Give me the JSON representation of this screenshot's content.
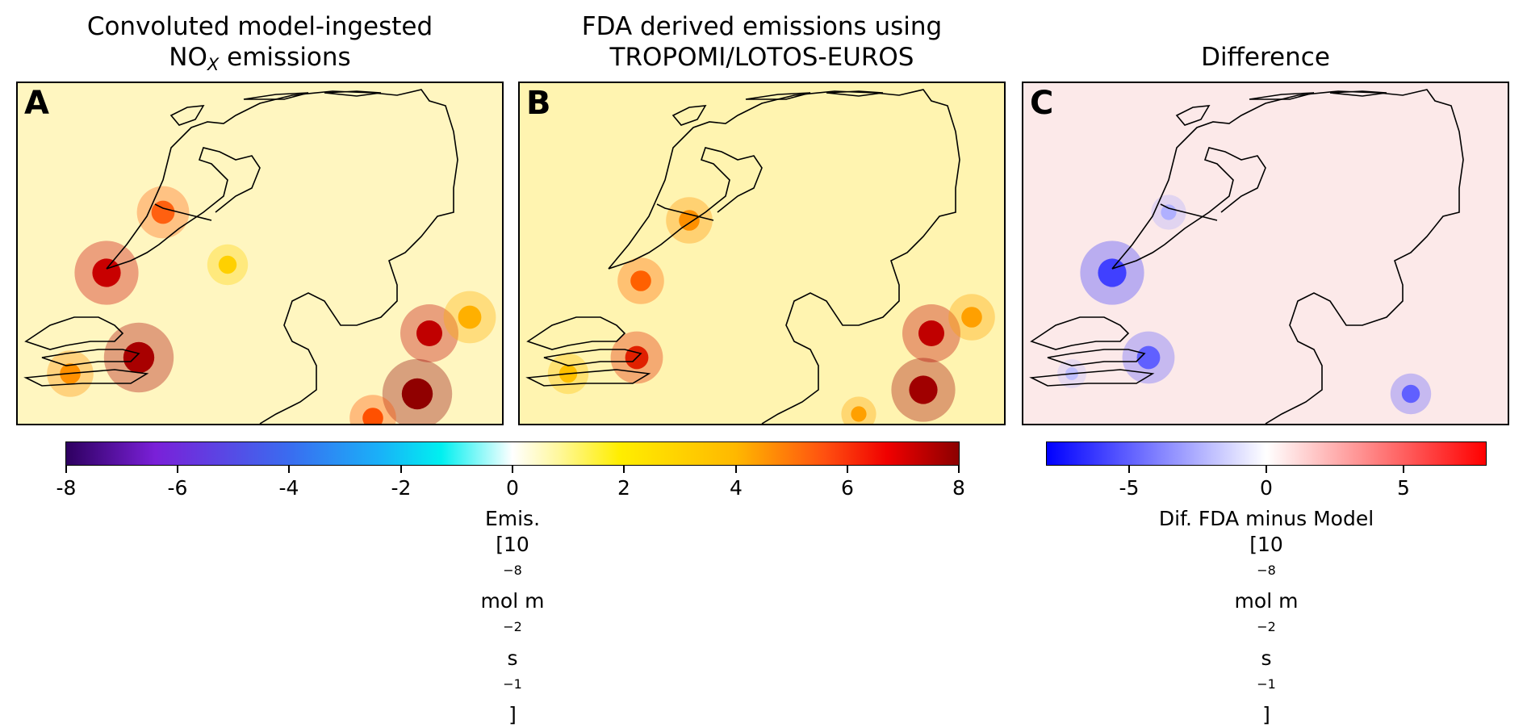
{
  "panels": [
    {
      "id": "A",
      "title_line1": "Convoluted model-ingested",
      "title_line2_pre": "NO",
      "title_line2_sub": "X",
      "title_line2_post": " emissions"
    },
    {
      "id": "B",
      "title_line1": "FDA derived emissions using",
      "title_line2": "TROPOMI/LOTOS-EUROS"
    },
    {
      "id": "C",
      "title_line1": "Difference"
    }
  ],
  "colorbar_emis": {
    "ticks": [
      "-8",
      "-6",
      "-4",
      "-2",
      "0",
      "2",
      "4",
      "6",
      "8"
    ],
    "label_line1": "Emis.",
    "label_line2_pre": "[10",
    "label_exp1": "−8",
    "label_mid1": " mol m",
    "label_exp2": "−2",
    "label_mid2": " s",
    "label_exp3": "−1",
    "label_post": "]"
  },
  "colorbar_diff": {
    "ticks": [
      "-5",
      "0",
      "5"
    ],
    "label_line1": "Dif. FDA minus Model",
    "label_line2_pre": "[10",
    "label_exp1": "−8",
    "label_mid1": " mol m",
    "label_exp2": "−2",
    "label_mid2": " s",
    "label_exp3": "−1",
    "label_post": "]"
  },
  "colors": {
    "emission_low": "#fff8b0",
    "emission_mid": "#ffd400",
    "emission_high": "#d00000",
    "diff_negative": "#3030ff",
    "diff_positive_bg": "#fde8e8"
  }
}
